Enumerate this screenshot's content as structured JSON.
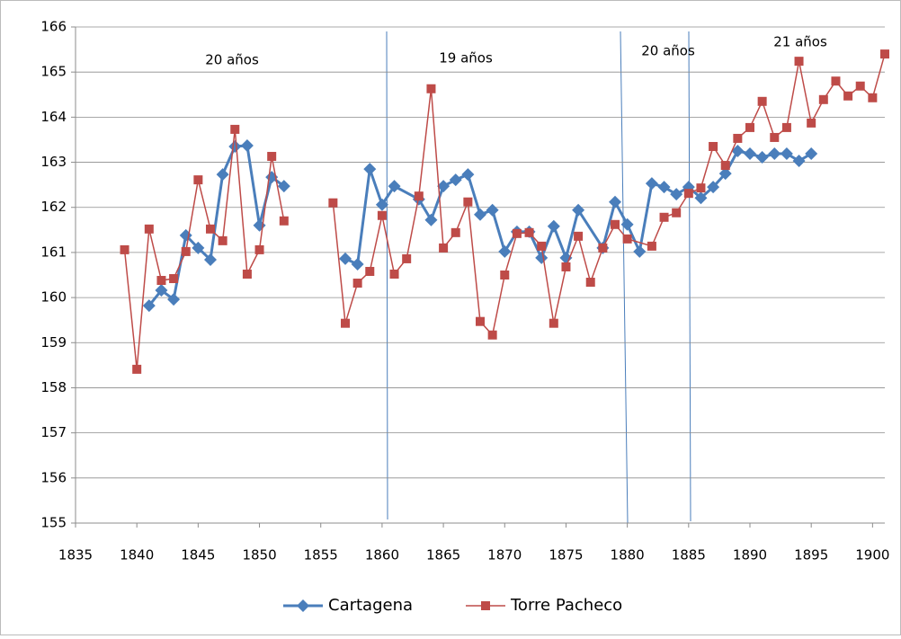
{
  "chart_data": {
    "type": "line",
    "annotations": [
      "20 años",
      "19 años",
      "20 años",
      "21 años"
    ],
    "xlim": [
      1835,
      1901
    ],
    "xticks": [
      1835,
      1840,
      1845,
      1850,
      1855,
      1860,
      1865,
      1870,
      1875,
      1880,
      1885,
      1890,
      1895,
      1900
    ],
    "ylim": [
      155,
      166
    ],
    "yticks": [
      155,
      156,
      157,
      158,
      159,
      160,
      161,
      162,
      163,
      164,
      165,
      166
    ],
    "grid": true,
    "legend": "bottom",
    "series": [
      {
        "name": "Cartagena",
        "color": "#4a7ebb",
        "marker": "diamond",
        "x": [
          1841,
          1842,
          1843,
          1844,
          1845,
          1846,
          1847,
          1848,
          1849,
          1850,
          1851,
          1852,
          null,
          1857,
          1858,
          1859,
          1860,
          1861,
          1863,
          1864,
          1865,
          1866,
          1867,
          1868,
          1869,
          1870,
          1871,
          1872,
          1873,
          1874,
          1875,
          1876,
          1878,
          1879,
          1880,
          1881,
          1882,
          1883,
          1884,
          1885,
          1886,
          1887,
          1888,
          1889,
          1890,
          1891,
          1892,
          1893,
          1894,
          1895
        ],
        "values": [
          159.82,
          160.16,
          159.96,
          161.38,
          161.1,
          160.84,
          162.73,
          163.35,
          163.37,
          161.6,
          162.67,
          162.47,
          null,
          160.86,
          160.74,
          162.85,
          162.06,
          162.47,
          162.18,
          161.72,
          162.47,
          162.61,
          162.73,
          161.84,
          161.94,
          161.02,
          161.46,
          161.46,
          160.88,
          161.58,
          160.88,
          161.94,
          161.1,
          162.12,
          161.62,
          161.02,
          162.53,
          162.45,
          162.29,
          162.45,
          162.21,
          162.45,
          162.75,
          163.25,
          163.19,
          163.11,
          163.19,
          163.19,
          163.03,
          163.19
        ]
      },
      {
        "name": "Torre Pacheco",
        "color": "#be4b48",
        "marker": "square",
        "x": [
          1839,
          1840,
          1841,
          1842,
          1843,
          1844,
          1845,
          1846,
          1847,
          1848,
          1849,
          1850,
          1851,
          1852,
          null,
          1856,
          1857,
          1858,
          1859,
          1860,
          1861,
          1862,
          1863,
          1864,
          1865,
          1866,
          1867,
          1868,
          1869,
          1870,
          1871,
          1872,
          1873,
          1874,
          1875,
          1876,
          1877,
          1878,
          1879,
          1880,
          1882,
          1883,
          1884,
          1885,
          1886,
          1887,
          1888,
          1889,
          1890,
          1891,
          1892,
          1893,
          1894,
          1895,
          1896,
          1897,
          1898,
          1899,
          1900,
          1901
        ],
        "values": [
          161.06,
          158.41,
          161.52,
          160.38,
          160.42,
          161.02,
          162.61,
          161.52,
          161.26,
          163.73,
          160.52,
          161.06,
          163.13,
          161.7,
          null,
          162.1,
          159.43,
          160.32,
          160.58,
          161.82,
          160.52,
          160.86,
          162.25,
          164.63,
          161.1,
          161.44,
          162.12,
          159.47,
          159.17,
          160.5,
          161.42,
          161.44,
          161.14,
          159.43,
          160.68,
          161.36,
          160.34,
          161.1,
          161.62,
          161.3,
          161.14,
          161.78,
          161.88,
          162.31,
          162.43,
          163.35,
          162.93,
          163.53,
          163.77,
          164.35,
          163.55,
          163.77,
          165.24,
          163.87,
          164.39,
          164.8,
          164.47,
          164.69,
          164.43,
          165.4
        ]
      }
    ]
  }
}
